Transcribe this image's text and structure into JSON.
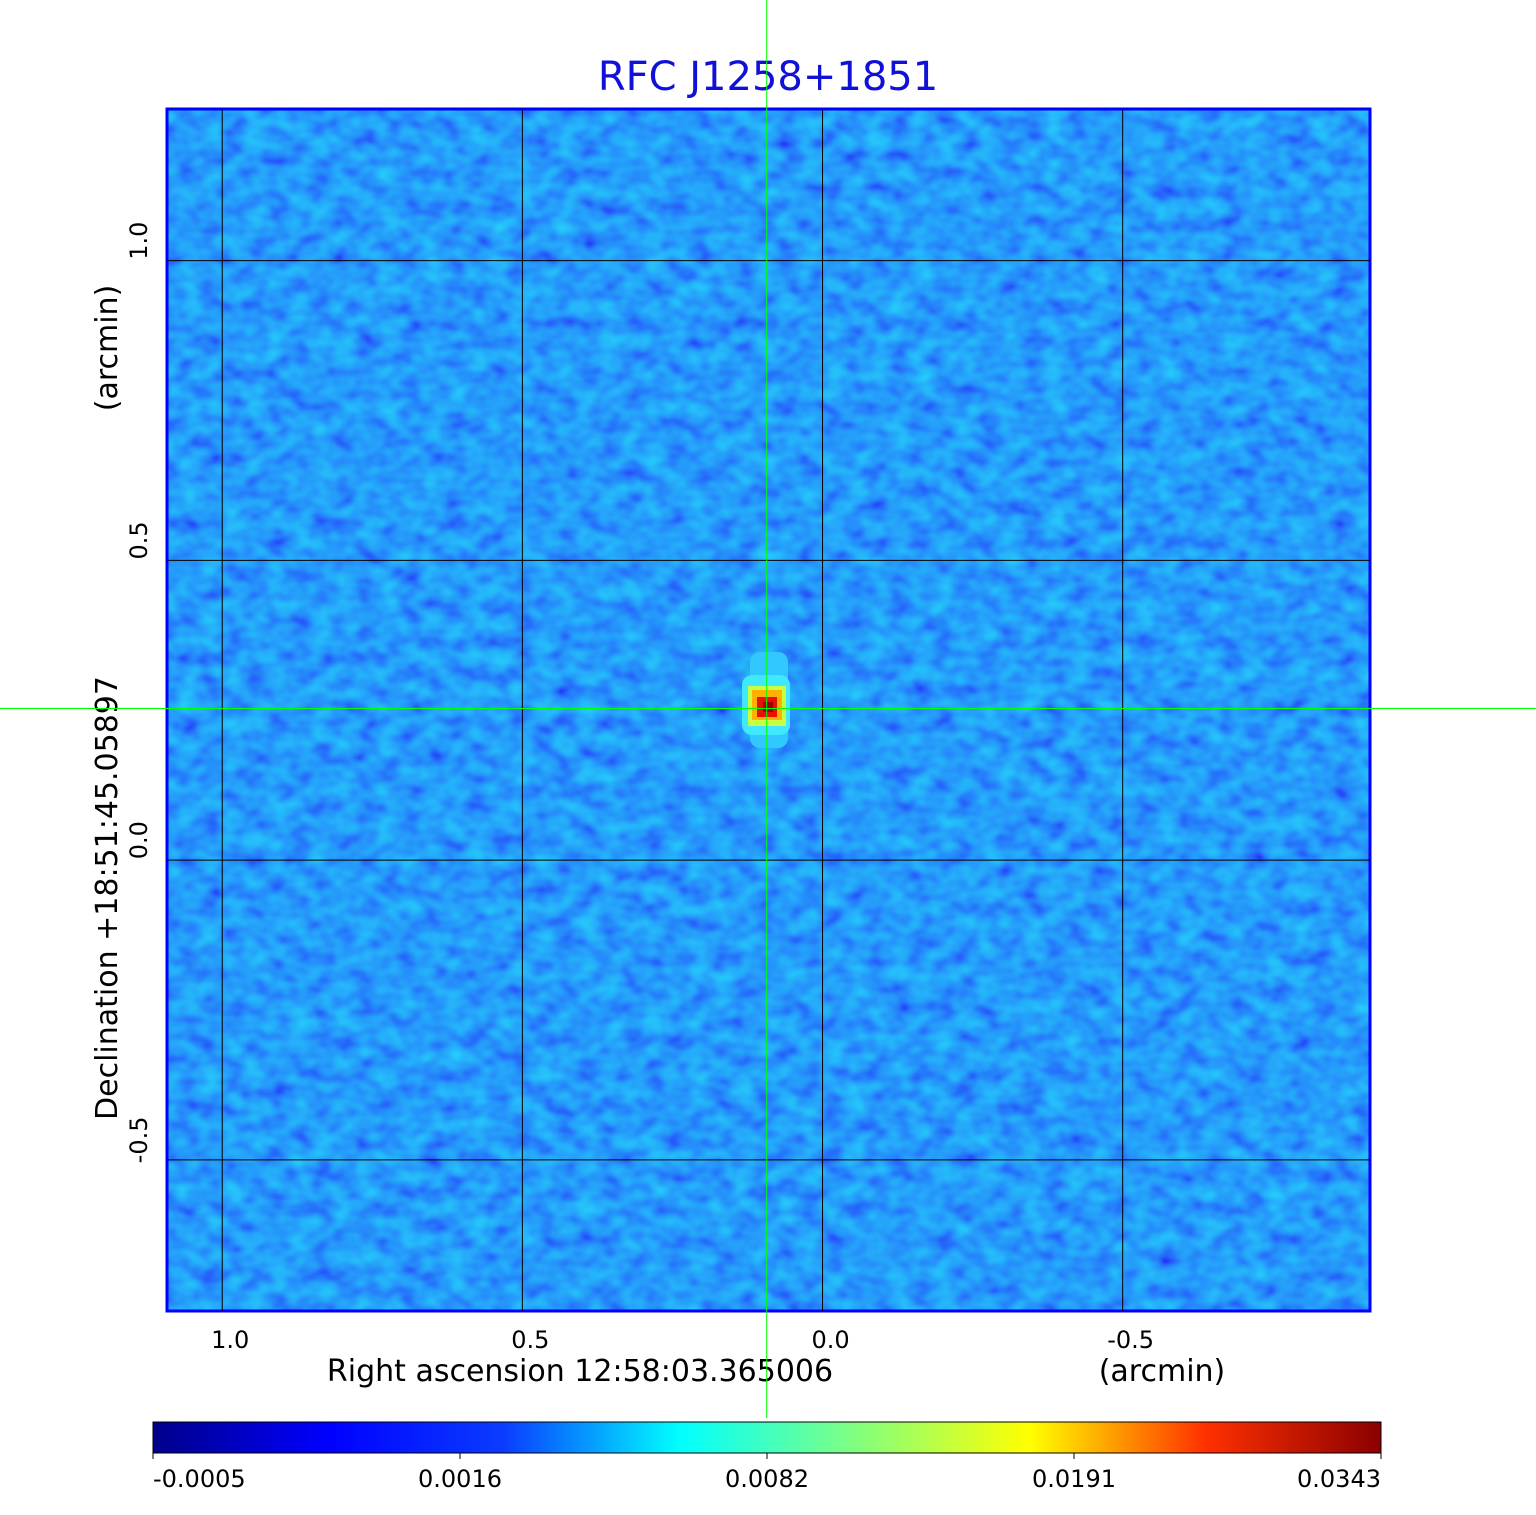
{
  "chart_data": {
    "type": "image",
    "title": "RFC J1258+1851",
    "x_label": "Right ascension  12:58:03.365006",
    "x_unit": "(arcmin)",
    "y_label": "Declination  +18:51:45.05897",
    "y_unit": "(arcmin)",
    "xlim": [
      1.092,
      -0.912
    ],
    "ylim": [
      -0.752,
      1.253
    ],
    "xticks": [
      {
        "value": 1,
        "label": "1.0"
      },
      0.5,
      {
        "value": 0,
        "label": "0.0"
      },
      -0.5
    ],
    "yticks": [
      -0.5,
      {
        "value": 0,
        "label": "0.0"
      },
      0.5,
      {
        "value": 1,
        "label": "1.0"
      }
    ],
    "grid": true,
    "crosshair": {
      "x": 0.093,
      "y": 0.253,
      "color": "#00ff00"
    },
    "colorbar": {
      "ticks": [
        -0.0005,
        0.0016,
        0.0082,
        0.0191,
        0.0343
      ],
      "colormap": [
        "#00008b",
        "#0000ff",
        "#0a3cff",
        "#00ffff",
        "#80ff80",
        "#ffff00",
        "#ff3000",
        "#8b0000"
      ]
    }
  }
}
